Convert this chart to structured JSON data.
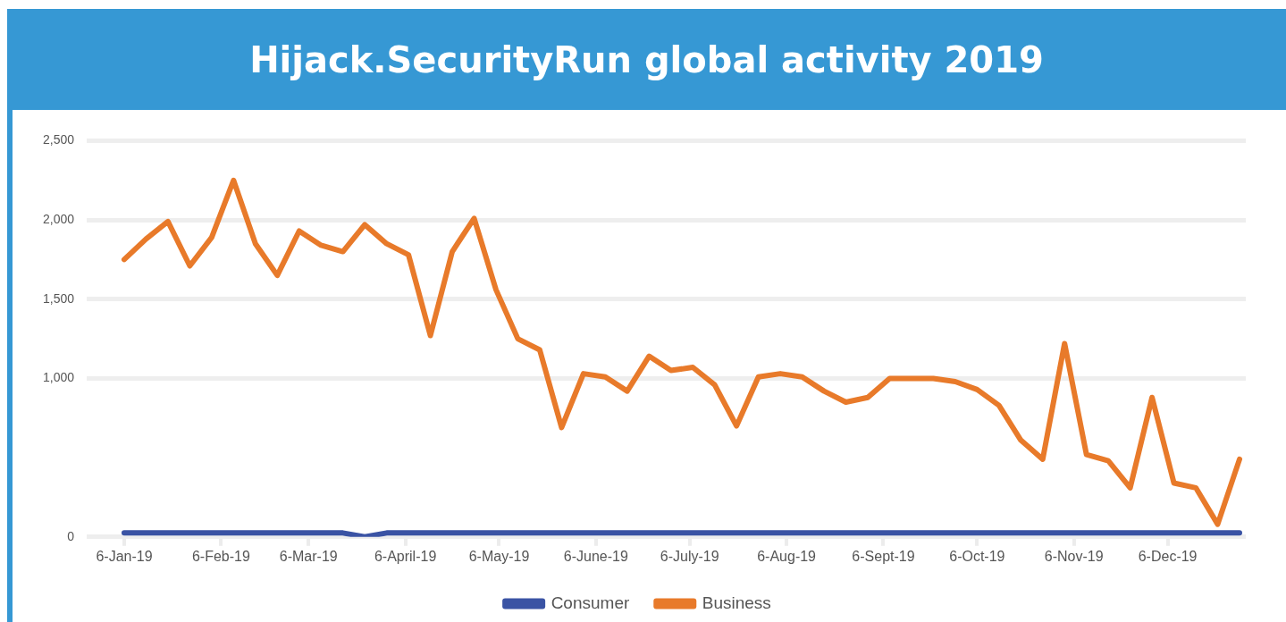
{
  "chart_data": {
    "type": "line",
    "title": "Hijack.SecurityRun global activity 2019",
    "x": [
      "2019-01-06",
      "2019-01-13",
      "2019-01-20",
      "2019-01-27",
      "2019-02-03",
      "2019-02-10",
      "2019-02-17",
      "2019-02-24",
      "2019-03-03",
      "2019-03-10",
      "2019-03-17",
      "2019-03-24",
      "2019-03-31",
      "2019-04-07",
      "2019-04-14",
      "2019-04-21",
      "2019-04-28",
      "2019-05-05",
      "2019-05-12",
      "2019-05-19",
      "2019-05-26",
      "2019-06-02",
      "2019-06-09",
      "2019-06-16",
      "2019-06-23",
      "2019-06-30",
      "2019-07-07",
      "2019-07-14",
      "2019-07-21",
      "2019-07-28",
      "2019-08-04",
      "2019-08-11",
      "2019-08-18",
      "2019-08-25",
      "2019-09-01",
      "2019-09-08",
      "2019-09-15",
      "2019-09-22",
      "2019-09-29",
      "2019-10-06",
      "2019-10-13",
      "2019-10-20",
      "2019-10-27",
      "2019-11-03",
      "2019-11-10",
      "2019-11-17",
      "2019-11-24",
      "2019-12-01",
      "2019-12-08",
      "2019-12-15",
      "2019-12-22",
      "2019-12-29"
    ],
    "series": [
      {
        "name": "Consumer",
        "color": "#3a53a4",
        "values": [
          25,
          25,
          25,
          25,
          25,
          25,
          25,
          25,
          25,
          25,
          25,
          0,
          25,
          25,
          25,
          25,
          25,
          25,
          25,
          25,
          25,
          25,
          25,
          25,
          25,
          25,
          25,
          25,
          25,
          25,
          25,
          25,
          25,
          25,
          25,
          25,
          25,
          25,
          25,
          25,
          25,
          25,
          25,
          25,
          25,
          25,
          25,
          25,
          25,
          25,
          25,
          25
        ]
      },
      {
        "name": "Business",
        "color": "#e87a2a",
        "values": [
          1750,
          1880,
          1990,
          1710,
          1890,
          2250,
          1850,
          1650,
          1930,
          1840,
          1800,
          1970,
          1850,
          1780,
          1270,
          1800,
          2010,
          1560,
          1250,
          1180,
          690,
          1030,
          1010,
          920,
          1140,
          1050,
          1070,
          960,
          700,
          1010,
          1030,
          1010,
          920,
          850,
          880,
          1000,
          1000,
          1000,
          980,
          930,
          830,
          610,
          490,
          1220,
          520,
          480,
          310,
          880,
          340,
          310,
          80,
          490
        ]
      }
    ],
    "xlim": [
      "2018-12-25",
      "2019-12-31"
    ],
    "xticks": [
      {
        "value": "2019-01-06",
        "label": "6-Jan-19"
      },
      {
        "value": "2019-02-06",
        "label": "6-Feb-19"
      },
      {
        "value": "2019-03-06",
        "label": "6-Mar-19"
      },
      {
        "value": "2019-04-06",
        "label": "6-April-19"
      },
      {
        "value": "2019-05-06",
        "label": "6-May-19"
      },
      {
        "value": "2019-06-06",
        "label": "6-June-19"
      },
      {
        "value": "2019-07-06",
        "label": "6-July-19"
      },
      {
        "value": "2019-08-06",
        "label": "6-Aug-19"
      },
      {
        "value": "2019-09-06",
        "label": "6-Sept-19"
      },
      {
        "value": "2019-10-06",
        "label": "6-Oct-19"
      },
      {
        "value": "2019-11-06",
        "label": "6-Nov-19"
      },
      {
        "value": "2019-12-06",
        "label": "6-Dec-19"
      }
    ],
    "ylim": [
      0,
      2500
    ],
    "yticks": [
      {
        "value": 0,
        "label": "0"
      },
      {
        "value": 1000,
        "label": "1,000"
      },
      {
        "value": 1500,
        "label": "1,500"
      },
      {
        "value": 2000,
        "label": "2,000"
      },
      {
        "value": 2500,
        "label": "2,500"
      }
    ],
    "grid": "y",
    "legend": "bottom",
    "marker": "none",
    "line_style": "solid"
  }
}
